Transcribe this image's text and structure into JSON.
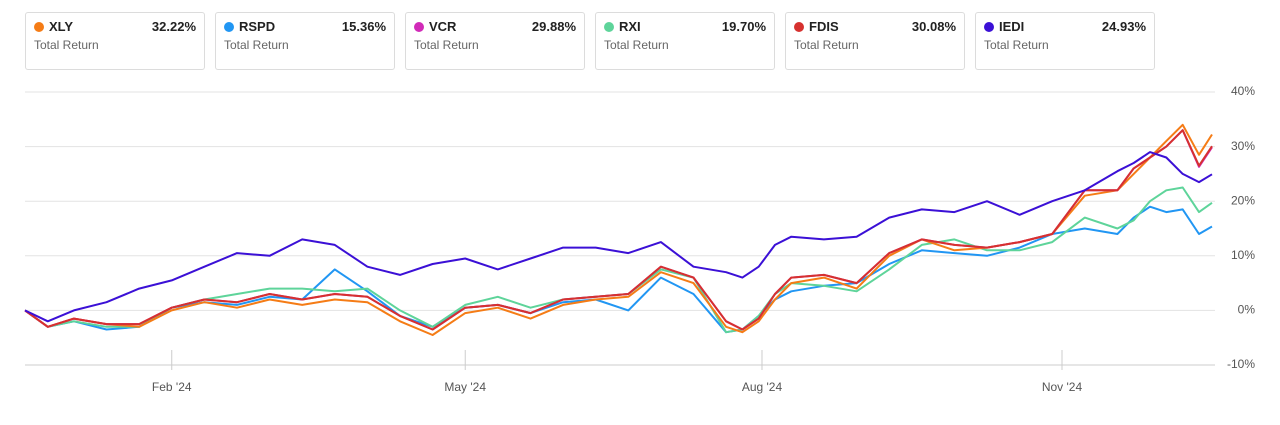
{
  "chart_data": {
    "type": "line",
    "summary_label": "Total Return",
    "x": [
      -45,
      -38,
      -30,
      -20,
      -10,
      0,
      10,
      20,
      30,
      40,
      50,
      60,
      70,
      80,
      90,
      100,
      110,
      120,
      130,
      140,
      150,
      160,
      170,
      175,
      180,
      185,
      190,
      200,
      210,
      220,
      230,
      240,
      250,
      260,
      270,
      280,
      290,
      295,
      300,
      305,
      310,
      315,
      319
    ],
    "xlim": [
      -45,
      319
    ],
    "xticks": [
      {
        "value": 0,
        "label": "Feb '24"
      },
      {
        "value": 90,
        "label": "May '24"
      },
      {
        "value": 181,
        "label": "Aug '24"
      },
      {
        "value": 273,
        "label": "Nov '24"
      }
    ],
    "ylim": [
      -10,
      40
    ],
    "yticks": [
      {
        "value": -10,
        "label": "-10%"
      },
      {
        "value": 0,
        "label": "0%"
      },
      {
        "value": 10,
        "label": "10%"
      },
      {
        "value": 20,
        "label": "20%"
      },
      {
        "value": 30,
        "label": "30%"
      },
      {
        "value": 40,
        "label": "40%"
      }
    ],
    "grid": true,
    "series": [
      {
        "name": "XLY",
        "color": "#f57c16",
        "value_label": "32.22%",
        "values": [
          0,
          -3,
          -1.5,
          -2.5,
          -3,
          0,
          1.5,
          0.5,
          2,
          1,
          2,
          1.5,
          -2,
          -4.5,
          -0.5,
          0.5,
          -1.5,
          1,
          2,
          2.5,
          7,
          5,
          -3,
          -4,
          -2,
          2,
          5,
          6,
          4,
          10,
          13,
          11,
          11.5,
          12.5,
          14,
          21,
          22,
          25,
          28,
          31,
          34,
          28.5,
          32.22
        ]
      },
      {
        "name": "RSPD",
        "color": "#2196f3",
        "value_label": "15.36%",
        "values": [
          0,
          -3,
          -2,
          -3.5,
          -3,
          0.5,
          1.5,
          1,
          2.5,
          2,
          7.5,
          3.5,
          -1,
          -3,
          0.5,
          1,
          -0.5,
          1.5,
          2,
          0,
          6,
          3,
          -4,
          -3.5,
          -1,
          2,
          3.5,
          4.5,
          5,
          8.5,
          11,
          10.5,
          10,
          11.5,
          14,
          15,
          14,
          17,
          19,
          18,
          18.5,
          14,
          15.36
        ]
      },
      {
        "name": "VCR",
        "color": "#d12bb8",
        "value_label": "29.88%",
        "values": [
          0,
          -3,
          -1.5,
          -2.5,
          -2.5,
          0.5,
          2,
          1.5,
          3,
          2,
          3,
          2.5,
          -1,
          -3.5,
          0.5,
          1,
          -0.5,
          2,
          2.5,
          3,
          8,
          6,
          -2,
          -3.5,
          -1.5,
          3,
          6,
          6.5,
          5,
          10.5,
          13,
          12,
          11.5,
          12.5,
          14,
          22,
          22,
          26,
          28,
          30,
          33,
          26.3,
          29.88
        ]
      },
      {
        "name": "RXI",
        "color": "#5ed49a",
        "value_label": "19.70%",
        "values": [
          0,
          -3,
          -2,
          -3,
          -3,
          0.5,
          2,
          3,
          4,
          4,
          3.5,
          4,
          0,
          -3,
          1,
          2.5,
          0.5,
          2,
          2.5,
          3,
          7.5,
          6,
          -4,
          -3.5,
          -1,
          3,
          5,
          4.5,
          3.5,
          7.5,
          12,
          13,
          11,
          11,
          12.5,
          17,
          15,
          16.5,
          20,
          22,
          22.5,
          18,
          19.7
        ]
      },
      {
        "name": "FDIS",
        "color": "#d6312f",
        "value_label": "30.08%",
        "values": [
          0,
          -3,
          -1.5,
          -2.5,
          -2.5,
          0.5,
          2,
          1.5,
          3,
          2,
          3,
          2.5,
          -1,
          -3.5,
          0.5,
          1,
          -0.5,
          2,
          2.5,
          3,
          8,
          6,
          -2,
          -3.5,
          -1.5,
          3,
          6,
          6.5,
          5,
          10.5,
          13,
          12,
          11.5,
          12.5,
          14,
          22,
          22,
          26,
          28,
          30,
          33,
          26.5,
          30.08
        ]
      },
      {
        "name": "IEDI",
        "color": "#3b10d6",
        "value_label": "24.93%",
        "values": [
          0,
          -2,
          0,
          1.5,
          4,
          5.5,
          8,
          10.5,
          10,
          13,
          12,
          8,
          6.5,
          8.5,
          9.5,
          7.5,
          9.5,
          11.5,
          11.5,
          10.5,
          12.5,
          8,
          7,
          6,
          8,
          12,
          13.5,
          13,
          13.5,
          17,
          18.5,
          18,
          20,
          17.5,
          20,
          22,
          25.5,
          27,
          29,
          28,
          25,
          23.5,
          24.93
        ]
      }
    ]
  }
}
